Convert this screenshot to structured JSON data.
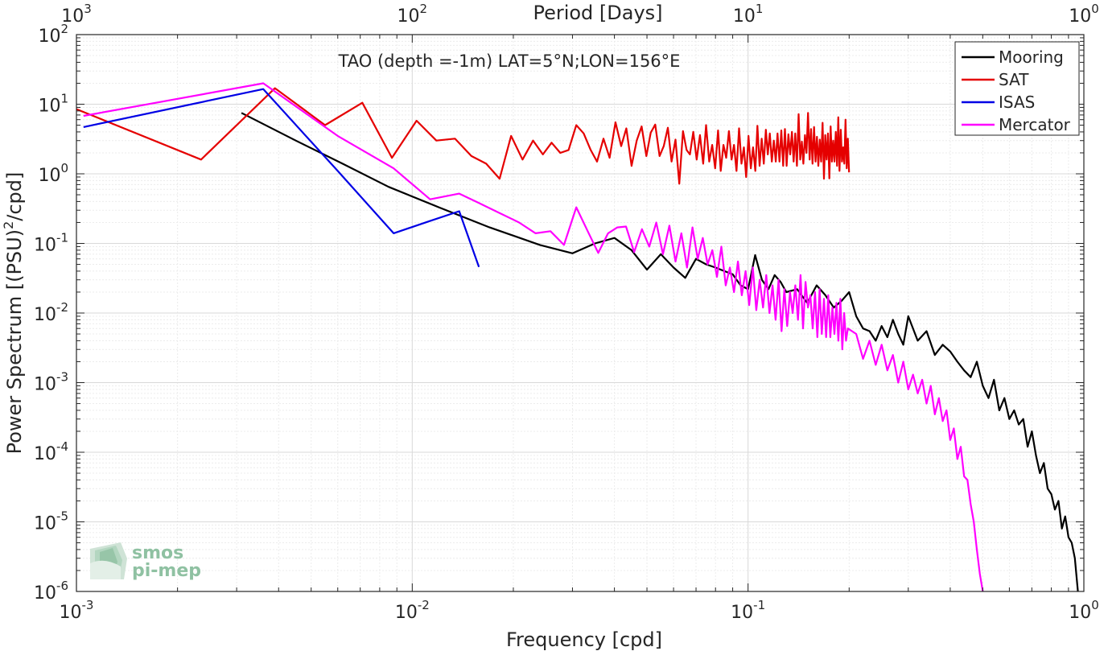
{
  "chart_data": {
    "type": "line",
    "title": "TAO (depth =-1m) LAT=5°N;LON=156°E",
    "xlabel": "Frequency [cpd]",
    "ylabel": "Power Spectrum [(PSU)²/cpd]",
    "top_xlabel": "Period [Days]",
    "x_scale": "log",
    "y_scale": "log",
    "xlim": [
      0.001,
      1
    ],
    "ylim": [
      1e-06,
      100
    ],
    "grid": true,
    "legend_position": "top-right",
    "x_ticks": [
      {
        "value": 0.001,
        "base": "10",
        "exp": "-3"
      },
      {
        "value": 0.01,
        "base": "10",
        "exp": "-2"
      },
      {
        "value": 0.1,
        "base": "10",
        "exp": "-1"
      },
      {
        "value": 1,
        "base": "10",
        "exp": "0"
      }
    ],
    "top_ticks": [
      {
        "value": 1000,
        "base": "10",
        "exp": "3"
      },
      {
        "value": 100,
        "base": "10",
        "exp": "2"
      },
      {
        "value": 10,
        "base": "10",
        "exp": "1"
      },
      {
        "value": 1,
        "base": "10",
        "exp": "0"
      }
    ],
    "y_ticks": [
      {
        "value": 100,
        "base": "10",
        "exp": "2"
      },
      {
        "value": 10,
        "base": "10",
        "exp": "1"
      },
      {
        "value": 1,
        "base": "10",
        "exp": "0"
      },
      {
        "value": 0.1,
        "base": "10",
        "exp": "-1"
      },
      {
        "value": 0.01,
        "base": "10",
        "exp": "-2"
      },
      {
        "value": 0.001,
        "base": "10",
        "exp": "-3"
      },
      {
        "value": 0.0001,
        "base": "10",
        "exp": "-4"
      },
      {
        "value": 1e-05,
        "base": "10",
        "exp": "-5"
      },
      {
        "value": 1e-06,
        "base": "10",
        "exp": "-6"
      }
    ],
    "series": [
      {
        "name": "Mooring",
        "color": "#000000",
        "x": [
          0.0031,
          0.0045,
          0.0062,
          0.0085,
          0.012,
          0.017,
          0.024,
          0.03,
          0.035,
          0.04,
          0.045,
          0.05,
          0.055,
          0.06,
          0.065,
          0.07,
          0.075,
          0.08,
          0.085,
          0.09,
          0.095,
          0.1,
          0.105,
          0.11,
          0.115,
          0.12,
          0.125,
          0.13,
          0.14,
          0.15,
          0.16,
          0.17,
          0.18,
          0.19,
          0.2,
          0.21,
          0.22,
          0.23,
          0.24,
          0.25,
          0.26,
          0.27,
          0.28,
          0.29,
          0.3,
          0.32,
          0.34,
          0.36,
          0.38,
          0.4,
          0.42,
          0.44,
          0.46,
          0.48,
          0.5,
          0.52,
          0.54,
          0.56,
          0.58,
          0.6,
          0.62,
          0.64,
          0.66,
          0.68,
          0.7,
          0.72,
          0.74,
          0.76,
          0.78,
          0.8,
          0.82,
          0.84,
          0.86,
          0.88,
          0.9,
          0.92,
          0.94,
          0.96
        ],
        "y": [
          7.5,
          3.0,
          1.4,
          0.65,
          0.33,
          0.17,
          0.095,
          0.072,
          0.1,
          0.12,
          0.08,
          0.042,
          0.07,
          0.045,
          0.032,
          0.06,
          0.05,
          0.045,
          0.04,
          0.036,
          0.025,
          0.022,
          0.068,
          0.03,
          0.022,
          0.035,
          0.028,
          0.02,
          0.022,
          0.014,
          0.025,
          0.018,
          0.012,
          0.015,
          0.02,
          0.009,
          0.006,
          0.0055,
          0.004,
          0.0065,
          0.0045,
          0.008,
          0.005,
          0.0035,
          0.009,
          0.004,
          0.0055,
          0.0025,
          0.0035,
          0.0028,
          0.002,
          0.0015,
          0.0012,
          0.002,
          0.0009,
          0.0006,
          0.0011,
          0.0004,
          0.0006,
          0.0003,
          0.0004,
          0.00025,
          0.0003,
          0.00012,
          0.0002,
          9e-05,
          5e-05,
          7e-05,
          3e-05,
          2.5e-05,
          1.5e-05,
          2e-05,
          8e-06,
          1.2e-05,
          6e-06,
          5e-06,
          3e-06,
          1e-06
        ]
      },
      {
        "name": "SAT",
        "color": "#e50000",
        "x": [
          0.001,
          0.00235,
          0.0039,
          0.0055,
          0.0071,
          0.0087,
          0.0103,
          0.0118,
          0.0134,
          0.015,
          0.0166,
          0.0182,
          0.0197,
          0.0213,
          0.0229,
          0.0245,
          0.026,
          0.0276,
          0.0292,
          0.0308,
          0.0324,
          0.034,
          0.0355,
          0.0371,
          0.0387,
          0.0403,
          0.0419,
          0.0434,
          0.045,
          0.0466,
          0.0482,
          0.0498,
          0.0513,
          0.0529,
          0.0545,
          0.0561,
          0.0577,
          0.0592,
          0.0608,
          0.0624,
          0.064,
          0.0656,
          0.0671,
          0.0687,
          0.0703,
          0.0719,
          0.0735,
          0.075,
          0.0766,
          0.0782,
          0.0798,
          0.0814,
          0.0829,
          0.0845,
          0.0861,
          0.0877,
          0.0893,
          0.0908,
          0.0924,
          0.094,
          0.0956,
          0.0972,
          0.0987,
          0.1003,
          0.1019,
          0.1035,
          0.1051,
          0.1066,
          0.1082,
          0.1098,
          0.1114,
          0.113,
          0.1145,
          0.1161,
          0.1177,
          0.1193,
          0.1209,
          0.1224,
          0.124,
          0.1256,
          0.1272,
          0.1288,
          0.1303,
          0.1319,
          0.1335,
          0.1351,
          0.1367,
          0.1382,
          0.1398,
          0.1414,
          0.143,
          0.1446,
          0.1461,
          0.1477,
          0.1493,
          0.1509,
          0.1525,
          0.154,
          0.1556,
          0.1572,
          0.1588,
          0.1604,
          0.1619,
          0.1635,
          0.1651,
          0.1667,
          0.1683,
          0.1698,
          0.1714,
          0.173,
          0.1746,
          0.1762,
          0.1777,
          0.1793,
          0.1809,
          0.1825,
          0.1841,
          0.1856,
          0.1872,
          0.1888,
          0.1904,
          0.192,
          0.1935,
          0.1951,
          0.1967,
          0.1983,
          0.1999
        ],
        "y": [
          8.5,
          1.6,
          17.0,
          5.0,
          10.5,
          1.7,
          5.8,
          3.0,
          3.2,
          1.8,
          1.4,
          0.85,
          3.5,
          1.6,
          3.0,
          1.9,
          2.8,
          2.0,
          2.2,
          5.0,
          3.8,
          2.2,
          1.5,
          3.2,
          1.7,
          5.5,
          2.5,
          4.5,
          1.3,
          3.0,
          4.8,
          1.8,
          3.9,
          5.1,
          1.8,
          2.5,
          4.6,
          1.5,
          3.1,
          0.72,
          4.1,
          2.2,
          1.9,
          4.0,
          1.6,
          3.6,
          1.4,
          5.0,
          1.5,
          2.6,
          1.2,
          4.2,
          1.1,
          2.6,
          1.7,
          4.1,
          1.6,
          2.6,
          1.1,
          4.5,
          1.4,
          2.4,
          0.9,
          3.5,
          1.2,
          2.4,
          1.1,
          4.9,
          1.3,
          3.2,
          1.4,
          4.3,
          1.9,
          3.8,
          1.5,
          3.0,
          1.5,
          3.8,
          1.5,
          4.2,
          1.3,
          4.4,
          1.3,
          3.7,
          1.9,
          4.0,
          1.5,
          3.8,
          1.3,
          7.2,
          1.6,
          2.9,
          1.4,
          3.6,
          2.0,
          7.5,
          1.6,
          4.4,
          1.4,
          4.7,
          1.5,
          3.4,
          1.3,
          3.1,
          1.5,
          5.4,
          0.85,
          3.6,
          1.6,
          3.8,
          0.86,
          4.8,
          1.5,
          3.0,
          1.5,
          4.0,
          1.3,
          6.5,
          1.1,
          4.3,
          1.5,
          2.4,
          1.4,
          6.0,
          1.2,
          3.2,
          1.05
        ]
      },
      {
        "name": "ISAS",
        "color": "#0000e5",
        "x": [
          0.00105,
          0.0036,
          0.006,
          0.0088,
          0.0113,
          0.0138,
          0.0158
        ],
        "y": [
          4.7,
          16.5,
          1.1,
          0.14,
          0.21,
          0.29,
          0.046
        ]
      },
      {
        "name": "Mercator",
        "color": "#ff00ff",
        "x": [
          0.00105,
          0.0036,
          0.006,
          0.0088,
          0.0113,
          0.0138,
          0.0158,
          0.0183,
          0.0208,
          0.0233,
          0.0258,
          0.0283,
          0.0308,
          0.0333,
          0.0358,
          0.0383,
          0.0408,
          0.0433,
          0.0458,
          0.0483,
          0.0508,
          0.0533,
          0.0558,
          0.0583,
          0.0608,
          0.0633,
          0.0658,
          0.0683,
          0.0708,
          0.0733,
          0.0758,
          0.0783,
          0.0808,
          0.0833,
          0.0858,
          0.0883,
          0.0908,
          0.0933,
          0.0958,
          0.0983,
          0.1008,
          0.1033,
          0.1058,
          0.1083,
          0.1108,
          0.1133,
          0.1158,
          0.1183,
          0.1208,
          0.1233,
          0.1258,
          0.1283,
          0.1308,
          0.1333,
          0.1358,
          0.1383,
          0.1408,
          0.1433,
          0.1458,
          0.1483,
          0.1508,
          0.1533,
          0.1558,
          0.1583,
          0.1608,
          0.1633,
          0.1658,
          0.1683,
          0.1708,
          0.1733,
          0.1758,
          0.1783,
          0.1808,
          0.1833,
          0.1858,
          0.1883,
          0.1908,
          0.1933,
          0.1958,
          0.1983,
          0.21,
          0.22,
          0.23,
          0.24,
          0.25,
          0.26,
          0.27,
          0.28,
          0.29,
          0.3,
          0.31,
          0.32,
          0.33,
          0.34,
          0.35,
          0.36,
          0.37,
          0.38,
          0.39,
          0.4,
          0.41,
          0.42,
          0.43,
          0.44,
          0.45,
          0.46,
          0.47,
          0.48,
          0.49,
          0.5
        ],
        "y": [
          6.8,
          20.0,
          3.5,
          1.2,
          0.43,
          0.52,
          0.38,
          0.27,
          0.2,
          0.14,
          0.15,
          0.095,
          0.33,
          0.15,
          0.073,
          0.14,
          0.17,
          0.175,
          0.075,
          0.16,
          0.09,
          0.2,
          0.07,
          0.18,
          0.055,
          0.14,
          0.045,
          0.17,
          0.06,
          0.12,
          0.05,
          0.08,
          0.033,
          0.09,
          0.025,
          0.045,
          0.02,
          0.055,
          0.018,
          0.04,
          0.013,
          0.045,
          0.011,
          0.03,
          0.012,
          0.035,
          0.01,
          0.025,
          0.008,
          0.03,
          0.0055,
          0.022,
          0.0065,
          0.02,
          0.01,
          0.025,
          0.008,
          0.035,
          0.006,
          0.028,
          0.012,
          0.018,
          0.006,
          0.02,
          0.0045,
          0.022,
          0.005,
          0.016,
          0.0045,
          0.018,
          0.0045,
          0.012,
          0.005,
          0.014,
          0.004,
          0.016,
          0.003,
          0.01,
          0.004,
          0.006,
          0.005,
          0.0022,
          0.004,
          0.0018,
          0.0035,
          0.0015,
          0.0025,
          0.001,
          0.002,
          0.0008,
          0.0013,
          0.0007,
          0.0011,
          0.0005,
          0.0009,
          0.00035,
          0.0006,
          0.00028,
          0.0004,
          0.00015,
          0.00022,
          8e-05,
          0.00012,
          4.5e-05,
          4e-05,
          1.8e-05,
          1e-05,
          4e-06,
          1.8e-06,
          1e-06
        ]
      }
    ]
  },
  "logo": {
    "line1": "smos",
    "line2": "pi-mep",
    "color": "#8fc1a2"
  }
}
